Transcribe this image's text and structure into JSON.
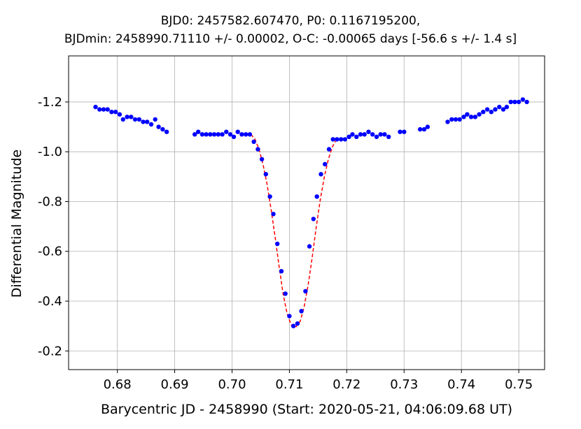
{
  "chart_data": {
    "type": "scatter",
    "title_line1": "BJD0: 2457582.607470, P0: 0.1167195200,",
    "title_line2": "BJDmin: 2458990.71110 +/- 0.00002, O-C: -0.00065 days [-56.6 s +/- 1.4 s]",
    "xlabel": "Barycentric JD - 2458990 (Start: 2020-05-21, 04:06:09.68 UT)",
    "ylabel": "Differential Magnitude",
    "xlim": [
      0.6715,
      0.7545
    ],
    "ylim": [
      -0.125,
      -1.385
    ],
    "y_inverted": true,
    "grid": true,
    "xticks": [
      0.68,
      0.69,
      0.7,
      0.71,
      0.72,
      0.73,
      0.74,
      0.75
    ],
    "xtick_labels": [
      "0.68",
      "0.69",
      "0.70",
      "0.71",
      "0.72",
      "0.73",
      "0.74",
      "0.75"
    ],
    "yticks": [
      -1.2,
      -1.0,
      -0.8,
      -0.6,
      -0.4,
      -0.2
    ],
    "ytick_labels": [
      "-1.2",
      "-1.0",
      "-0.8",
      "-0.6",
      "-0.4",
      "-0.2"
    ],
    "point_color": "#0000ff",
    "fit_color": "#ff0000",
    "series": [
      {
        "type": "scatter",
        "x": [
          0.6762,
          0.6769,
          0.6776,
          0.6783,
          0.679,
          0.6797,
          0.6804,
          0.681,
          0.6817,
          0.6824,
          0.6831,
          0.6838,
          0.6845,
          0.6852,
          0.6859,
          0.6866,
          0.6872,
          0.6879,
          0.6886,
          0.6935,
          0.6941,
          0.6948,
          0.6955,
          0.6962,
          0.6969,
          0.6976,
          0.6983,
          0.699,
          0.6997,
          0.7003,
          0.701,
          0.7017,
          0.7024,
          0.7031,
          0.7038,
          0.7045,
          0.7052,
          0.7059,
          0.7066,
          0.7072,
          0.7079,
          0.7086,
          0.7093,
          0.71,
          0.7107,
          0.7114,
          0.7121,
          0.7128,
          0.7135,
          0.7142,
          0.7148,
          0.7155,
          0.7162,
          0.7169,
          0.7176,
          0.7183,
          0.719,
          0.7197,
          0.7204,
          0.721,
          0.7217,
          0.7224,
          0.7231,
          0.7238,
          0.7245,
          0.7252,
          0.7259,
          0.7266,
          0.7273,
          0.7293,
          0.73,
          0.7328,
          0.7335,
          0.7341,
          0.7376,
          0.7383,
          0.739,
          0.7397,
          0.7404,
          0.741,
          0.7417,
          0.7424,
          0.7431,
          0.7438,
          0.7445,
          0.7452,
          0.7459,
          0.7466,
          0.7473,
          0.7479,
          0.7486,
          0.7493,
          0.75,
          0.7507,
          0.7514
        ],
        "y": [
          -1.18,
          -1.17,
          -1.17,
          -1.17,
          -1.16,
          -1.16,
          -1.15,
          -1.13,
          -1.14,
          -1.14,
          -1.13,
          -1.13,
          -1.12,
          -1.12,
          -1.11,
          -1.13,
          -1.1,
          -1.09,
          -1.08,
          -1.07,
          -1.08,
          -1.07,
          -1.07,
          -1.07,
          -1.07,
          -1.07,
          -1.07,
          -1.08,
          -1.07,
          -1.06,
          -1.08,
          -1.07,
          -1.07,
          -1.07,
          -1.04,
          -1.01,
          -0.97,
          -0.91,
          -0.82,
          -0.75,
          -0.63,
          -0.52,
          -0.43,
          -0.34,
          -0.3,
          -0.31,
          -0.36,
          -0.44,
          -0.62,
          -0.73,
          -0.82,
          -0.91,
          -0.95,
          -1.01,
          -1.05,
          -1.05,
          -1.05,
          -1.05,
          -1.06,
          -1.07,
          -1.06,
          -1.07,
          -1.07,
          -1.08,
          -1.07,
          -1.06,
          -1.07,
          -1.07,
          -1.06,
          -1.08,
          -1.08,
          -1.09,
          -1.09,
          -1.1,
          -1.12,
          -1.13,
          -1.13,
          -1.13,
          -1.14,
          -1.15,
          -1.14,
          -1.14,
          -1.15,
          -1.16,
          -1.17,
          -1.16,
          -1.17,
          -1.18,
          -1.17,
          -1.18,
          -1.2,
          -1.2,
          -1.2,
          -1.21,
          -1.2
        ]
      },
      {
        "type": "line",
        "dashed": true,
        "x": [
          0.7033,
          0.704,
          0.7047,
          0.7054,
          0.7061,
          0.7068,
          0.7075,
          0.7082,
          0.7089,
          0.7096,
          0.7103,
          0.7111,
          0.7119,
          0.7126,
          0.7133,
          0.714,
          0.7147,
          0.7154,
          0.7161,
          0.7168,
          0.7175,
          0.7182
        ],
        "y": [
          -1.07,
          -1.05,
          -1.01,
          -0.95,
          -0.87,
          -0.77,
          -0.66,
          -0.54,
          -0.43,
          -0.35,
          -0.305,
          -0.295,
          -0.32,
          -0.38,
          -0.47,
          -0.58,
          -0.7,
          -0.81,
          -0.9,
          -0.97,
          -1.02,
          -1.05
        ]
      }
    ]
  }
}
